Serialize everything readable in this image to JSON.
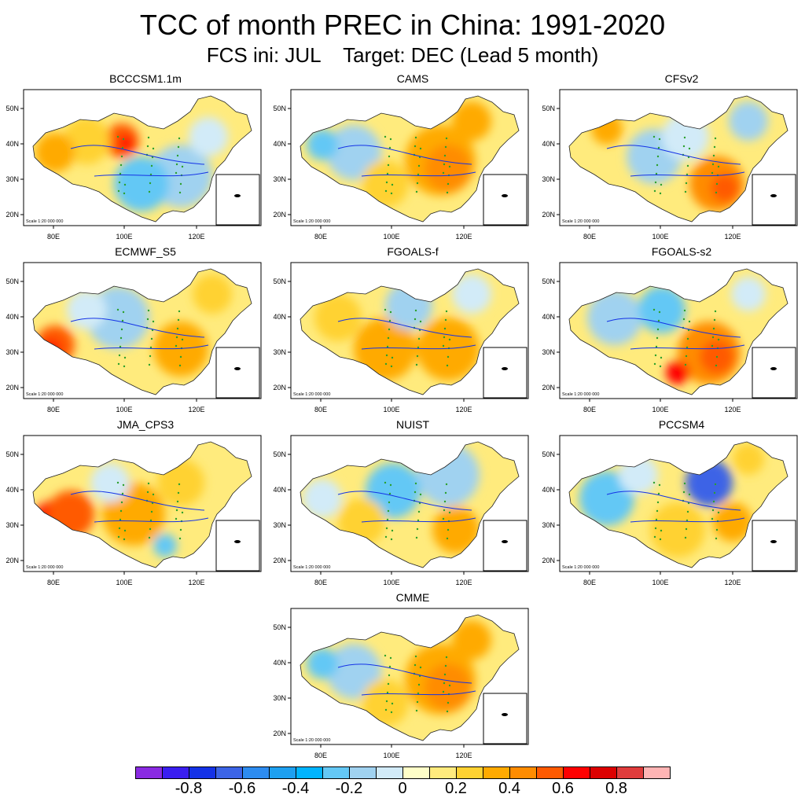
{
  "figure": {
    "title": "TCC of month PREC in China: 1991-2020",
    "subtitle": "FCS ini: JUL    Target: DEC (Lead 5 month)"
  },
  "panels": [
    {
      "name": "BCCCSM1.1m",
      "style": "mixed-west-warm"
    },
    {
      "name": "CAMS",
      "style": "east-warm"
    },
    {
      "name": "CFSv2",
      "style": "south-warm"
    },
    {
      "name": "ECMWF_S5",
      "style": "southwest-warm"
    },
    {
      "name": "FGOALS-f",
      "style": "broad-warm"
    },
    {
      "name": "FGOALS-s2",
      "style": "southeast-warm"
    },
    {
      "name": "JMA_CPS3",
      "style": "tibet-warm"
    },
    {
      "name": "NUIST",
      "style": "north-cool"
    },
    {
      "name": "PCCSM4",
      "style": "mixed-cool"
    },
    {
      "name": "CMME",
      "style": "east-warm"
    }
  ],
  "axes": {
    "xticks": [
      "80E",
      "100E",
      "120E"
    ],
    "yticks": [
      "50N",
      "40N",
      "30N",
      "20N"
    ],
    "scale_note": "Scale 1:20 000 000"
  },
  "colorbar": {
    "colors": [
      "#8a2be2",
      "#3a1ef0",
      "#1432e6",
      "#3c64e6",
      "#2d8cf0",
      "#1ea0f0",
      "#00b4ff",
      "#64c8f5",
      "#a0d2f0",
      "#d2ebf8",
      "#ffffc8",
      "#ffeb7d",
      "#ffd232",
      "#ffaa00",
      "#ff8c00",
      "#ff5a00",
      "#ff0000",
      "#dc0000",
      "#e03c3c",
      "#ffb4b4"
    ],
    "labels": [
      "-0.8",
      "-0.6",
      "-0.4",
      "-0.2",
      "0",
      "0.2",
      "0.4",
      "0.6",
      "0.8"
    ]
  }
}
